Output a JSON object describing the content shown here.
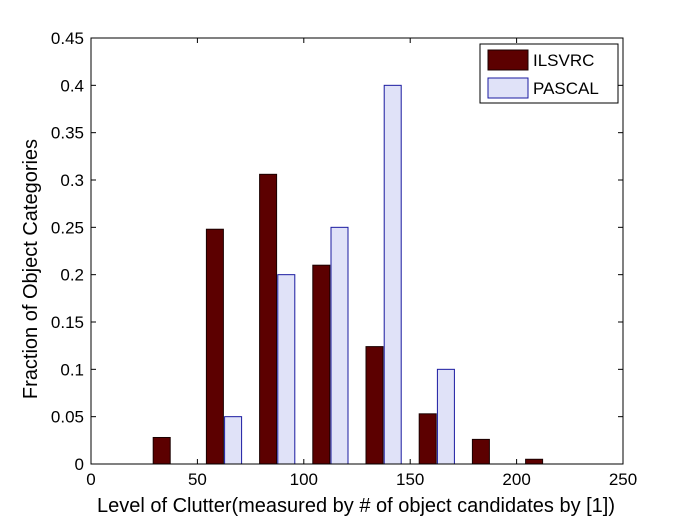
{
  "chart_data": {
    "type": "bar",
    "title": "",
    "xlabel": "Level of Clutter(measured by # of object candidates by [1])",
    "ylabel": "Fraction of Object Categories",
    "xlim": [
      0,
      250
    ],
    "ylim": [
      0,
      0.45
    ],
    "xticks": [
      "0",
      "50",
      "100",
      "150",
      "200",
      "250"
    ],
    "yticks": [
      "0",
      "0.05",
      "0.1",
      "0.15",
      "0.2",
      "0.25",
      "0.3",
      "0.35",
      "0.4",
      "0.45"
    ],
    "bin_centers": [
      37.5,
      62.5,
      87.5,
      112.5,
      137.5,
      162.5,
      187.5,
      212.5,
      237.5
    ],
    "legend_position": "top-right",
    "grid": false,
    "series": [
      {
        "name": "ILSVRC",
        "color": "#5c0000",
        "values": [
          0.028,
          0.248,
          0.306,
          0.21,
          0.124,
          0.053,
          0.026,
          0.005,
          0
        ]
      },
      {
        "name": "PASCAL",
        "color": "#e0e2f8",
        "edge_color": "#1a1aa0",
        "values": [
          0,
          0.05,
          0.2,
          0.25,
          0.4,
          0.1,
          0,
          0,
          0
        ]
      }
    ]
  }
}
